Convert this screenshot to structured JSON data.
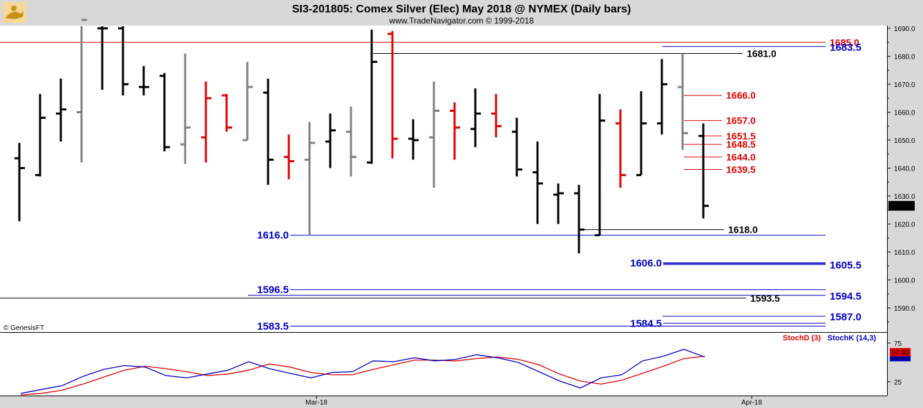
{
  "header": {
    "title": "SI3-201805:  Comex Silver (Elec) May 2018 @ NYMEX  (Daily bars)",
    "subtitle": "www.TradeNavigator.com © 1999-2018",
    "logo": "genie-lamp-icon"
  },
  "watermark": "© GenesisFT",
  "colors": {
    "up_bar": "#000000",
    "down_bar": "#e00000",
    "neutral_bar": "#808080",
    "stoch_d": "#e00000",
    "stoch_k": "#0000c8",
    "level_blue": "#0000c8",
    "level_red": "#e00000",
    "level_black": "#000000",
    "price_box": "#000000"
  },
  "current_price": "1626.5",
  "chart_data": [
    {
      "type": "ohlc",
      "ylim": [
        1580,
        1693
      ],
      "yticks": [
        "1590.0",
        "1600.0",
        "1610.0",
        "1620.0",
        "1630.0",
        "1640.0",
        "1650.0",
        "1660.0",
        "1670.0",
        "1680.0",
        "1690.0"
      ],
      "xticks": [
        {
          "i": 14,
          "label": "Mar-18"
        },
        {
          "i": 35,
          "label": "Apr-18"
        }
      ],
      "bars": [
        {
          "o": 1643.5,
          "h": 1649,
          "l": 1621,
          "c": 1640,
          "col": "up"
        },
        {
          "o": 1637.5,
          "h": 1666.5,
          "l": 1637,
          "c": 1658,
          "col": "up"
        },
        {
          "o": 1659.5,
          "h": 1672,
          "l": 1649.5,
          "c": 1661,
          "col": "up"
        },
        {
          "o": 1660,
          "h": 1693,
          "l": 1642,
          "c": 1693,
          "col": "neutral"
        },
        {
          "o": 1690,
          "h": 1693,
          "l": 1668,
          "c": 1690,
          "col": "up"
        },
        {
          "o": 1690,
          "h": 1693,
          "l": 1666,
          "c": 1670,
          "col": "up"
        },
        {
          "o": 1669,
          "h": 1676.5,
          "l": 1666,
          "c": 1669,
          "col": "up"
        },
        {
          "o": 1673,
          "h": 1674,
          "l": 1646,
          "c": 1647.5,
          "col": "up"
        },
        {
          "o": 1648.5,
          "h": 1681,
          "l": 1641.5,
          "c": 1654.5,
          "col": "neutral"
        },
        {
          "o": 1651,
          "h": 1671,
          "l": 1642,
          "c": 1665,
          "col": "down"
        },
        {
          "o": 1666,
          "h": 1666.5,
          "l": 1653,
          "c": 1654.5,
          "col": "down"
        },
        {
          "o": 1650,
          "h": 1678,
          "l": 1650,
          "c": 1669,
          "col": "neutral"
        },
        {
          "o": 1667,
          "h": 1672,
          "l": 1634,
          "c": 1643,
          "col": "up"
        },
        {
          "o": 1644,
          "h": 1652,
          "l": 1636,
          "c": 1642.5,
          "col": "down"
        },
        {
          "o": 1643,
          "h": 1656.5,
          "l": 1616,
          "c": 1649,
          "col": "neutral"
        },
        {
          "o": 1649.5,
          "h": 1659.5,
          "l": 1640,
          "c": 1653.5,
          "col": "up"
        },
        {
          "o": 1653,
          "h": 1662,
          "l": 1637,
          "c": 1644,
          "col": "neutral"
        },
        {
          "o": 1642,
          "h": 1689.5,
          "l": 1641.5,
          "c": 1678,
          "col": "up"
        },
        {
          "o": 1688,
          "h": 1689,
          "l": 1643.5,
          "c": 1650.5,
          "col": "down"
        },
        {
          "o": 1650.5,
          "h": 1657.5,
          "l": 1643,
          "c": 1650,
          "col": "up"
        },
        {
          "o": 1651,
          "h": 1671,
          "l": 1633,
          "c": 1660.5,
          "col": "neutral"
        },
        {
          "o": 1660.5,
          "h": 1663.5,
          "l": 1643,
          "c": 1654.5,
          "col": "down"
        },
        {
          "o": 1654,
          "h": 1668.5,
          "l": 1647.5,
          "c": 1659.5,
          "col": "up"
        },
        {
          "o": 1659.5,
          "h": 1666.5,
          "l": 1651,
          "c": 1655,
          "col": "down"
        },
        {
          "o": 1653,
          "h": 1658,
          "l": 1637,
          "c": 1639.5,
          "col": "up"
        },
        {
          "o": 1638.5,
          "h": 1649.5,
          "l": 1620,
          "c": 1634.5,
          "col": "up"
        },
        {
          "o": 1630.5,
          "h": 1634.5,
          "l": 1620,
          "c": 1631,
          "col": "up"
        },
        {
          "o": 1631,
          "h": 1634,
          "l": 1609.5,
          "c": 1618,
          "col": "up"
        },
        {
          "o": 1616,
          "h": 1666.5,
          "l": 1616,
          "c": 1657,
          "col": "up"
        },
        {
          "o": 1656,
          "h": 1661,
          "l": 1633,
          "c": 1637.5,
          "col": "down"
        },
        {
          "o": 1637.5,
          "h": 1667.5,
          "l": 1637.5,
          "c": 1656,
          "col": "up"
        },
        {
          "o": 1656,
          "h": 1679,
          "l": 1652,
          "c": 1670,
          "col": "up"
        },
        {
          "o": 1669,
          "h": 1681,
          "l": 1646.5,
          "c": 1652.5,
          "col": "neutral"
        },
        {
          "o": 1651.5,
          "h": 1656,
          "l": 1622,
          "c": 1626.5,
          "col": "up"
        }
      ],
      "levels": [
        {
          "value": 1685.0,
          "label": "1685.0",
          "color": "red",
          "x0": 0,
          "x1": 1195,
          "label_side": "right",
          "thin": true
        },
        {
          "value": 1683.5,
          "label": "1683.5",
          "color": "blue",
          "x0": 959,
          "x1": 1195,
          "label_side": "far"
        },
        {
          "value": 1681.0,
          "label": "1681.0",
          "color": "black",
          "x0": 540,
          "x1": 1075,
          "label_side": "right"
        },
        {
          "value": 1666.0,
          "label": "1666.0",
          "color": "red",
          "x0": 990,
          "x1": 1045,
          "label_side": "right"
        },
        {
          "value": 1657.0,
          "label": "1657.0",
          "color": "red",
          "x0": 990,
          "x1": 1045,
          "label_side": "right"
        },
        {
          "value": 1651.5,
          "label": "1651.5",
          "color": "red",
          "x0": 1012,
          "x1": 1045,
          "label_side": "right"
        },
        {
          "value": 1648.5,
          "label": "1648.5",
          "color": "red",
          "x0": 990,
          "x1": 1045,
          "label_side": "right"
        },
        {
          "value": 1644.0,
          "label": "1644.0",
          "color": "red",
          "x0": 990,
          "x1": 1045,
          "label_side": "right"
        },
        {
          "value": 1639.5,
          "label": "1639.5",
          "color": "red",
          "x0": 990,
          "x1": 1045,
          "label_side": "right"
        },
        {
          "value": 1618.0,
          "label": "1618.0",
          "color": "black",
          "x0": 840,
          "x1": 1048,
          "label_side": "right"
        },
        {
          "value": 1616.0,
          "label": "1616.0",
          "color": "blue",
          "x0": 420,
          "x1": 1195,
          "label_side": "left"
        },
        {
          "value": 1606.0,
          "label": "1606.0",
          "color": "blue",
          "x0": 960,
          "x1": 1195,
          "label_side": "left",
          "bold": true
        },
        {
          "value": 1605.5,
          "label": "1605.5",
          "color": "blue",
          "x0": 960,
          "x1": 1195,
          "label_side": "far"
        },
        {
          "value": 1596.5,
          "label": "1596.5",
          "color": "blue",
          "x0": 420,
          "x1": 1195,
          "label_side": "left"
        },
        {
          "value": 1594.5,
          "label": "1594.5",
          "color": "blue",
          "x0": 359,
          "x1": 1195,
          "label_side": "far"
        },
        {
          "value": 1593.5,
          "label": "1593.5",
          "color": "black",
          "x0": 0,
          "x1": 1080,
          "label_side": "right"
        },
        {
          "value": 1587.0,
          "label": "1587.0",
          "color": "blue",
          "x0": 959,
          "x1": 1195,
          "label_side": "far"
        },
        {
          "value": 1584.5,
          "label": "1584.5",
          "color": "blue",
          "x0": 960,
          "x1": 1195,
          "label_side": "left"
        },
        {
          "value": 1583.5,
          "label": "1583.5",
          "color": "blue",
          "x0": 420,
          "x1": 1195,
          "label_side": "left"
        }
      ]
    },
    {
      "type": "line",
      "title": "",
      "ylim": [
        10,
        90
      ],
      "yticks": [
        "75",
        "25"
      ],
      "series": [
        {
          "name": "StochK (14,3)",
          "color": "#0000c8",
          "values": [
            10,
            15,
            20,
            32,
            41,
            46,
            44,
            33,
            30,
            35,
            40,
            51,
            42,
            36,
            30,
            37,
            38,
            52,
            51,
            56,
            52,
            54,
            60,
            56,
            50,
            38,
            26,
            17,
            30,
            34,
            52,
            58,
            67,
            57
          ]
        },
        {
          "name": "StochD (3)",
          "color": "#e00000",
          "values": [
            8,
            10,
            14,
            22,
            31,
            40,
            45,
            42,
            38,
            33,
            35,
            40,
            48,
            44,
            37,
            34,
            34,
            41,
            47,
            53,
            53,
            52,
            55,
            57,
            54,
            47,
            35,
            26,
            22,
            27,
            36,
            45,
            55,
            58
          ]
        }
      ],
      "current_values": [
        "57.90",
        "56.82"
      ]
    }
  ]
}
